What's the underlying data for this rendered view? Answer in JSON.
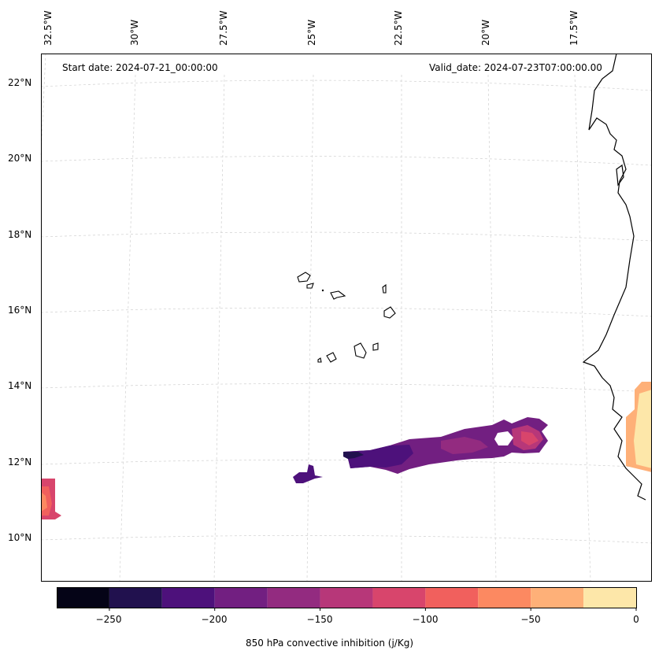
{
  "map": {
    "start_date": "Start date: 2024-07-21_00:00:00",
    "valid_date": "Valid_date: 2024-07-23T07:00:00.00",
    "lon_labels": [
      "32.5°W",
      "30°W",
      "27.5°W",
      "25°W",
      "22.5°W",
      "20°W",
      "17.5°W"
    ],
    "lat_labels": [
      "22°N",
      "20°N",
      "18°N",
      "16°N",
      "14°N",
      "12°N",
      "10°N"
    ],
    "gridlines": "dashed-light-gray",
    "coastline_color": "#000000"
  },
  "colorbar": {
    "label": "850 hPa convective inhibition (j/Kg)",
    "ticks": [
      "−250",
      "−200",
      "−150",
      "−100",
      "−50",
      "0"
    ],
    "levels": [
      -275,
      -250,
      -225,
      -200,
      -175,
      -150,
      -125,
      -100,
      -75,
      -50,
      -25,
      0
    ],
    "colors": [
      "#050417",
      "#21114e",
      "#4d117b",
      "#721f81",
      "#932b80",
      "#b73779",
      "#d8456c",
      "#f1605d",
      "#fc8961",
      "#feb078",
      "#fde7a9"
    ],
    "colormap": "magma"
  }
}
